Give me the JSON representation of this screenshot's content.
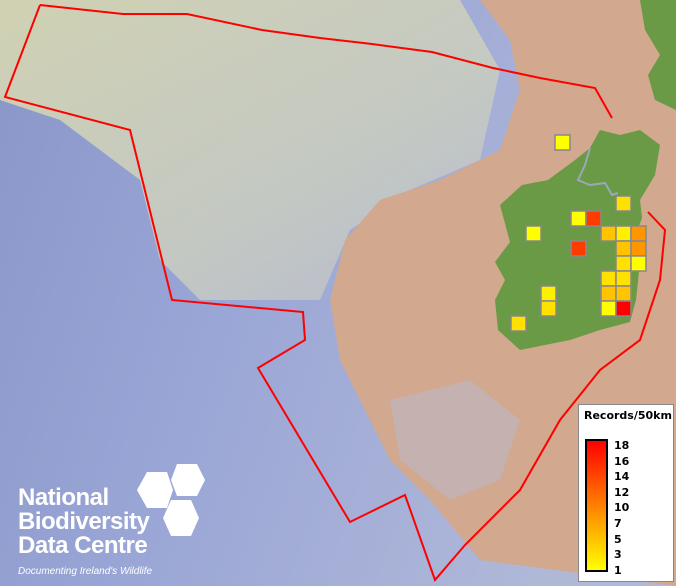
{
  "legend": {
    "title": "Records/50km",
    "ticks": [
      "18",
      "16",
      "14",
      "12",
      "10",
      "7",
      "5",
      "3",
      "1"
    ],
    "color_scale": [
      "#ffff00",
      "#ff8000",
      "#ff0000"
    ]
  },
  "grid_cells": {
    "resolution": "50km",
    "values": [
      1,
      3,
      1,
      14,
      5,
      2,
      8,
      1,
      14,
      5,
      8,
      3,
      1,
      3,
      3,
      5,
      5,
      1,
      18,
      2,
      3,
      3
    ]
  },
  "colors": {
    "eez_boundary": "#ff0000",
    "land": "#6a9a45",
    "cell_border": "#888888"
  },
  "logo": {
    "line1": "National",
    "line2": "Biodiversity",
    "line3": "Data Centre",
    "tagline": "Documenting Ireland's Wildlife"
  }
}
